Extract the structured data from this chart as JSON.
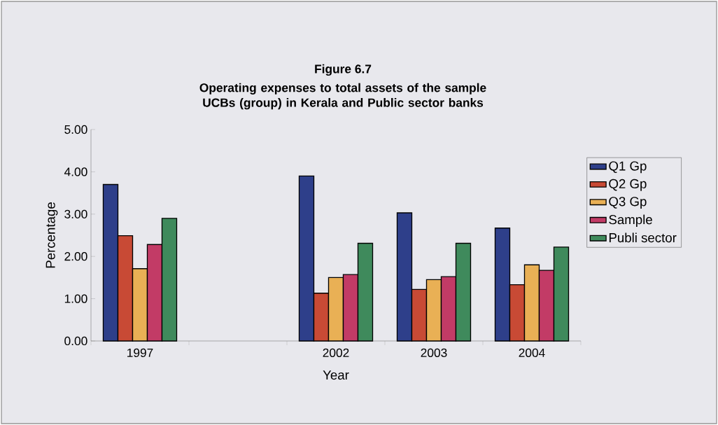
{
  "chart_data": {
    "type": "bar",
    "title": "Figure 6.7",
    "subtitle": "Operating expenses to total assets of the sample UCBs (group) in Kerala and Public sector banks",
    "xlabel": "Year",
    "ylabel": "Percentage",
    "categories": [
      "1997",
      null,
      "2002",
      "2003",
      "2004"
    ],
    "series": [
      {
        "name": "Q1 Gp",
        "color": "#2e3f8a",
        "values": [
          3.7,
          null,
          3.9,
          3.03,
          2.67
        ]
      },
      {
        "name": "Q2 Gp",
        "color": "#c84a35",
        "values": [
          2.49,
          null,
          1.13,
          1.22,
          1.33
        ]
      },
      {
        "name": "Q3 Gp",
        "color": "#e9b055",
        "values": [
          1.71,
          null,
          1.5,
          1.45,
          1.8
        ]
      },
      {
        "name": "Sample",
        "color": "#c23b66",
        "values": [
          2.28,
          null,
          1.57,
          1.52,
          1.67
        ]
      },
      {
        "name": "Publi sector",
        "color": "#3f8a5c",
        "values": [
          2.9,
          null,
          2.31,
          2.31,
          2.22
        ]
      }
    ],
    "ylim": [
      0,
      5
    ],
    "yticks": [
      {
        "value": 0,
        "label": "0.00"
      },
      {
        "value": 1,
        "label": "1.00"
      },
      {
        "value": 2,
        "label": "2.00"
      },
      {
        "value": 3,
        "label": "3.00"
      },
      {
        "value": 4,
        "label": "4.00"
      },
      {
        "value": 5,
        "label": "5.00"
      }
    ],
    "legend": "right"
  }
}
